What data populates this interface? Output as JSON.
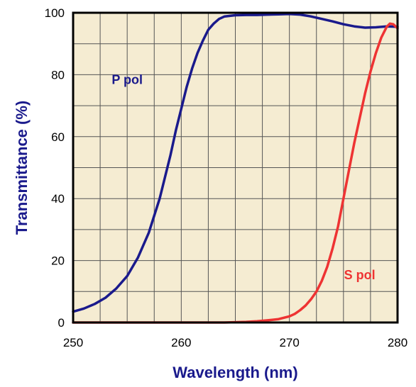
{
  "chart_data": {
    "type": "line",
    "title": "",
    "xlabel": "Wavelength (nm)",
    "ylabel": "Transmittance (%)",
    "xlim": [
      250,
      280
    ],
    "ylim": [
      0,
      100
    ],
    "x_ticks": [
      "250",
      "260",
      "270",
      "280"
    ],
    "y_ticks": [
      "0",
      "20",
      "40",
      "60",
      "80",
      "100"
    ],
    "grid": true,
    "plot_background": "#f5ecd2",
    "series": [
      {
        "name": "P pol",
        "color": "#1a1a8c",
        "x": [
          250,
          251,
          252,
          253,
          254,
          255,
          256,
          257,
          258,
          258.5,
          259,
          259.5,
          260,
          260.5,
          261,
          261.5,
          262,
          262.5,
          263,
          263.5,
          264,
          265,
          266,
          267,
          268,
          269,
          270,
          271,
          272,
          273,
          274,
          275,
          276,
          277,
          278,
          279,
          280
        ],
        "y": [
          3.5,
          4.5,
          6,
          8,
          11,
          15,
          21,
          29,
          40,
          47,
          54,
          62,
          69,
          76,
          82,
          87,
          91,
          94.5,
          96.5,
          98,
          98.8,
          99.2,
          99.3,
          99.3,
          99.4,
          99.5,
          99.6,
          99.4,
          98.8,
          98,
          97.2,
          96.3,
          95.6,
          95.2,
          95.3,
          95.6,
          95.5
        ]
      },
      {
        "name": "S pol",
        "color": "#ee3333",
        "x": [
          250,
          255,
          260,
          264,
          266,
          267,
          268,
          269,
          270,
          270.5,
          271,
          271.5,
          272,
          272.5,
          273,
          273.5,
          274,
          274.5,
          275,
          275.5,
          276,
          276.5,
          277,
          277.5,
          278,
          278.5,
          279,
          279.3,
          279.6,
          280
        ],
        "y": [
          0,
          0,
          0,
          0,
          0.2,
          0.4,
          0.7,
          1.1,
          2,
          2.8,
          4,
          5.5,
          7.5,
          10,
          13.5,
          18,
          24,
          31,
          40,
          49,
          58,
          66,
          74,
          81,
          87,
          92,
          95.5,
          96.5,
          96.3,
          95
        ]
      }
    ],
    "annotations": [
      {
        "text": "P pol",
        "series": "P pol",
        "x": 255,
        "y": 77
      },
      {
        "text": "S pol",
        "series": "S pol",
        "x": 276.5,
        "y": 14
      }
    ]
  }
}
